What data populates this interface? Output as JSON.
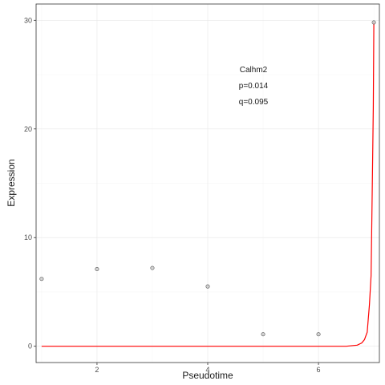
{
  "chart_data": {
    "type": "scatter",
    "xlabel": "Pseudotime",
    "ylabel": "Expression",
    "xlim": [
      0.9,
      7.1
    ],
    "ylim": [
      -1.5,
      31.5
    ],
    "x_ticks": [
      2,
      4,
      6
    ],
    "y_ticks": [
      0,
      10,
      20,
      30
    ],
    "grid": true,
    "points": [
      {
        "x": 1,
        "y": 6.2
      },
      {
        "x": 2,
        "y": 7.1
      },
      {
        "x": 3,
        "y": 7.2
      },
      {
        "x": 4,
        "y": 5.5
      },
      {
        "x": 5,
        "y": 1.1
      },
      {
        "x": 6,
        "y": 1.1
      },
      {
        "x": 7,
        "y": 29.8
      }
    ],
    "fit_line": {
      "color": "#ff0000",
      "points": [
        {
          "x": 1,
          "y": 0
        },
        {
          "x": 6.5,
          "y": 0
        },
        {
          "x": 6.7,
          "y": 0.1
        },
        {
          "x": 6.78,
          "y": 0.3
        },
        {
          "x": 6.83,
          "y": 0.6
        },
        {
          "x": 6.88,
          "y": 1.3
        },
        {
          "x": 6.92,
          "y": 3.8
        },
        {
          "x": 6.95,
          "y": 6.5
        },
        {
          "x": 6.97,
          "y": 14
        },
        {
          "x": 6.99,
          "y": 22
        },
        {
          "x": 7,
          "y": 29.8
        }
      ]
    },
    "annotations": {
      "gene": "Calhm2",
      "p": "p=0.014",
      "q": "q=0.095"
    },
    "colors": {
      "point_fill": "#c8c8c8",
      "point_stroke": "#555555",
      "line": "#ff0000"
    }
  }
}
